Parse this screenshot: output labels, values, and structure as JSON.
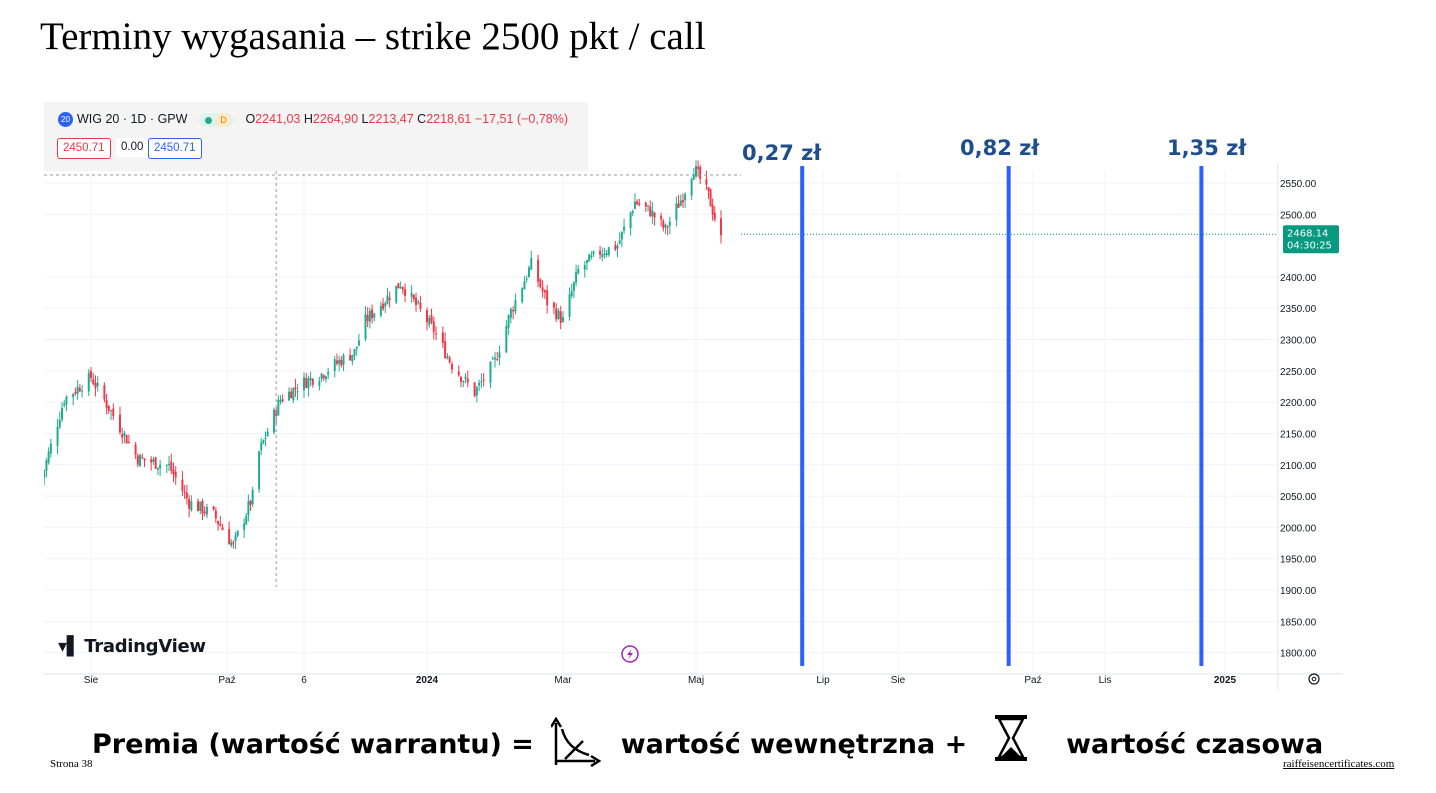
{
  "slide": {
    "title": "Terminy wygasania – strike 2500 pkt / call",
    "page": "Strona 38",
    "link": "raiffeisencertificates.com"
  },
  "header": {
    "badge": "20",
    "symbol": "WIG 20 · 1D · GPW",
    "badge_d": "D",
    "o_label": "O",
    "o_value": "2241,03",
    "h_label": "H",
    "h_value": "2264,90",
    "l_label": "L",
    "l_value": "2213,47",
    "c_label": "C",
    "c_value": "2218,61",
    "change": "−17,51 (−0,78%)",
    "sell": "2450.71",
    "spread": "0.00",
    "buy": "2450.71"
  },
  "watermark": "TradingView",
  "labels": {
    "premium_1": "0,27 zł",
    "premium_2": "0,82 zł",
    "premium_3": "1,35 zł"
  },
  "formula": {
    "left": "Premia (wartość warrantu) =",
    "intrinsic": "wartość wewnętrzna +",
    "time": "wartość czasowa"
  },
  "icons": {
    "intrinsic": "hockey-stick-payoff-icon",
    "time": "hourglass-icon",
    "lightning": "lightning-icon",
    "settings": "settings-icon"
  },
  "colors": {
    "up": "#22ab94",
    "down": "#f23645",
    "expiry_line": "#2962ff",
    "label": "#1f4e8c",
    "price_tag": "#089981"
  },
  "chart_data": {
    "type": "candlestick",
    "ylim": [
      1780,
      2580
    ],
    "yticks": [
      2550,
      2500,
      2400,
      2350,
      2300,
      2250,
      2200,
      2150,
      2100,
      2050,
      2000,
      1950,
      1900,
      1850,
      1800
    ],
    "ytick_labels": [
      "2550.00",
      "2500.00",
      "2400.00",
      "2350.00",
      "2300.00",
      "2250.00",
      "2200.00",
      "2150.00",
      "2100.00",
      "2050.00",
      "2000.00",
      "1950.00",
      "1900.00",
      "1850.00",
      "1800.00"
    ],
    "xticks": [
      "Sie",
      "Paź",
      "6",
      "2024",
      "Mar",
      "Maj",
      "Lip",
      "Sie",
      "Paź",
      "Lis",
      "2025"
    ],
    "xtick_dates": [
      "2023-08-01",
      "2023-10-01",
      "2023-11-06",
      "2024-01-01",
      "2024-03-01",
      "2024-05-01",
      "2024-07-01",
      "2024-08-01",
      "2024-10-01",
      "2024-11-01",
      "2025-01-01"
    ],
    "last_price": "2468.14",
    "countdown": "04:30:25",
    "last_value": 2468.14,
    "expiries": [
      {
        "date": "2024-06-21",
        "premium": "0,27 zł"
      },
      {
        "date": "2024-09-20",
        "premium": "0,82 zł"
      },
      {
        "date": "2024-12-20",
        "premium": "1,35 zł"
      }
    ],
    "path_dates": [
      "2023-07-10",
      "2023-07-20",
      "2023-08-01",
      "2023-08-10",
      "2023-08-22",
      "2023-09-05",
      "2023-09-14",
      "2023-09-25",
      "2023-10-04",
      "2023-10-13",
      "2023-10-16",
      "2023-10-26",
      "2023-11-06",
      "2023-11-14",
      "2023-11-22",
      "2023-11-29",
      "2023-12-04",
      "2023-12-12",
      "2023-12-20",
      "2024-01-04",
      "2024-01-12",
      "2024-01-22",
      "2024-01-31",
      "2024-02-07",
      "2024-02-16",
      "2024-02-23",
      "2024-03-01",
      "2024-03-08",
      "2024-03-18",
      "2024-03-26",
      "2024-04-03",
      "2024-04-10",
      "2024-04-17",
      "2024-04-25",
      "2024-04-30",
      "2024-05-07",
      "2024-05-13"
    ],
    "path_values": [
      2080,
      2205,
      2240,
      2185,
      2110,
      2098,
      2040,
      2020,
      1970,
      2050,
      2120,
      2205,
      2232,
      2245,
      2265,
      2280,
      2330,
      2360,
      2390,
      2315,
      2260,
      2215,
      2265,
      2345,
      2420,
      2360,
      2330,
      2410,
      2440,
      2450,
      2520,
      2505,
      2475,
      2530,
      2575,
      2530,
      2460
    ]
  }
}
